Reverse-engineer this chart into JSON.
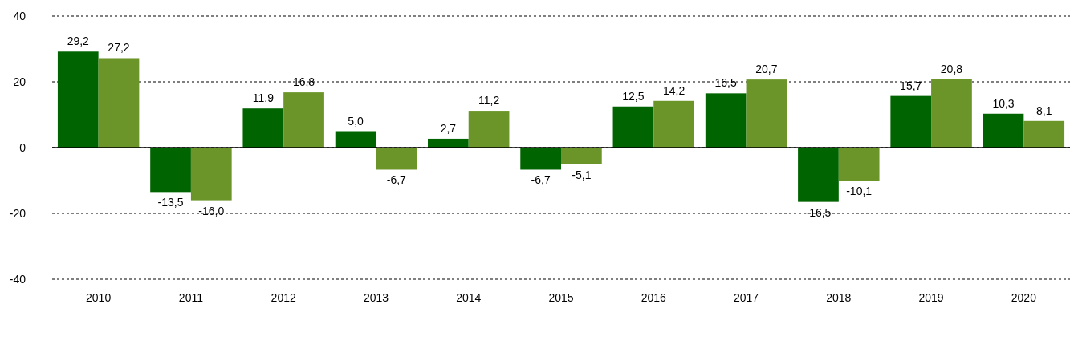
{
  "chart_data": {
    "type": "bar",
    "categories": [
      "2010",
      "2011",
      "2012",
      "2013",
      "2014",
      "2015",
      "2016",
      "2017",
      "2018",
      "2019",
      "2020"
    ],
    "series": [
      {
        "color": "#006400",
        "values": [
          29.2,
          -13.5,
          11.9,
          5.0,
          2.7,
          -6.7,
          12.5,
          16.5,
          -16.5,
          15.7,
          10.3
        ],
        "value_labels": [
          "29,2",
          "-13,5",
          "11,9",
          "5,0",
          "2,7",
          "-6,7",
          "12,5",
          "16,5",
          "-16,5",
          "15,7",
          "10,3"
        ]
      },
      {
        "color": "#6b9429",
        "values": [
          27.2,
          -16.0,
          16.8,
          -6.7,
          11.2,
          -5.1,
          14.2,
          20.7,
          -10.1,
          20.8,
          8.1
        ],
        "value_labels": [
          "27,2",
          "-16,0",
          "16,8",
          "-6,7",
          "11,2",
          "-5,1",
          "14,2",
          "20,7",
          "-10,1",
          "20,8",
          "8,1"
        ]
      }
    ],
    "ylim": [
      -40,
      40
    ],
    "yticks": [
      -40,
      -20,
      0,
      20,
      40
    ],
    "grid": "y"
  }
}
